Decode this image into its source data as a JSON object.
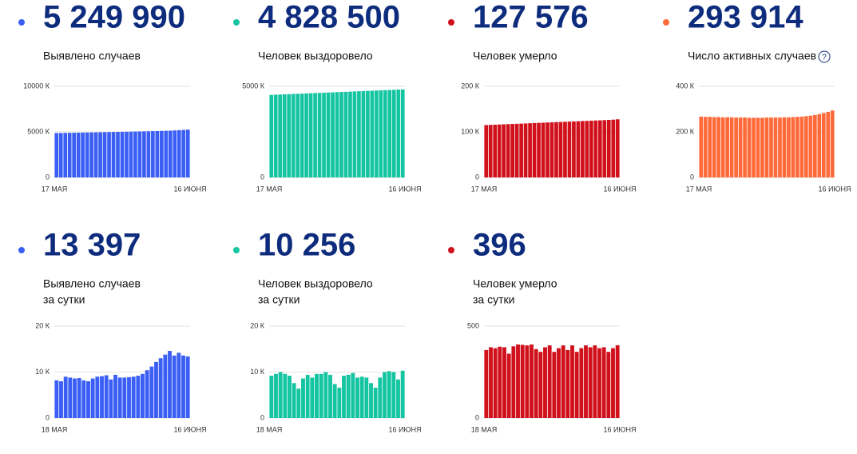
{
  "chart_data": [
    {
      "type": "bar",
      "headline": "5 249 990",
      "subtitle": [
        "Выявлено случаев"
      ],
      "color": "#3b5ff5",
      "categories": [
        "17 МАЯ",
        null,
        null,
        null,
        null,
        null,
        null,
        null,
        null,
        null,
        null,
        null,
        null,
        null,
        null,
        null,
        null,
        null,
        null,
        null,
        null,
        null,
        null,
        null,
        null,
        null,
        null,
        null,
        null,
        null,
        "16 ИЮНЯ"
      ],
      "values": [
        4870,
        4879,
        4888,
        4897,
        4906,
        4915,
        4924,
        4933,
        4942,
        4951,
        4960,
        4970,
        4980,
        4990,
        5000,
        5010,
        5020,
        5030,
        5040,
        5050,
        5060,
        5070,
        5081,
        5093,
        5106,
        5120,
        5135,
        5160,
        5190,
        5220,
        5250
      ],
      "ylim": [
        0,
        10000
      ],
      "yticks": [
        0,
        {
          "value": 5000,
          "label": "5000 К"
        },
        {
          "value": 10000,
          "label": "10000 К"
        }
      ],
      "grid": true
    },
    {
      "type": "bar",
      "headline": "4 828 500",
      "subtitle": [
        "Человек выздоровело"
      ],
      "color": "#15c5a2",
      "categories": [
        "17 МАЯ",
        null,
        null,
        null,
        null,
        null,
        null,
        null,
        null,
        null,
        null,
        null,
        null,
        null,
        null,
        null,
        null,
        null,
        null,
        null,
        null,
        null,
        null,
        null,
        null,
        null,
        null,
        null,
        null,
        null,
        "16 ИЮНЯ"
      ],
      "values": [
        4530,
        4540,
        4550,
        4560,
        4570,
        4580,
        4590,
        4600,
        4610,
        4620,
        4630,
        4640,
        4650,
        4660,
        4670,
        4680,
        4690,
        4700,
        4710,
        4720,
        4730,
        4740,
        4750,
        4760,
        4770,
        4780,
        4790,
        4800,
        4810,
        4820,
        4829
      ],
      "ylim": [
        0,
        5000
      ],
      "yticks": [
        0,
        {
          "value": 5000,
          "label": "5000 К"
        }
      ],
      "grid": true
    },
    {
      "type": "bar",
      "headline": "127 576",
      "subtitle": [
        "Человек умерло"
      ],
      "color": "#d0101b",
      "categories": [
        "17 МАЯ",
        null,
        null,
        null,
        null,
        null,
        null,
        null,
        null,
        null,
        null,
        null,
        null,
        null,
        null,
        null,
        null,
        null,
        null,
        null,
        null,
        null,
        null,
        null,
        null,
        null,
        null,
        null,
        null,
        null,
        "16 ИЮНЯ"
      ],
      "values": [
        115.0,
        115.4,
        115.8,
        116.2,
        116.6,
        117.0,
        117.4,
        117.8,
        118.2,
        118.6,
        119.0,
        119.4,
        119.8,
        120.2,
        120.6,
        121.0,
        121.4,
        121.8,
        122.2,
        122.6,
        123.0,
        123.4,
        123.8,
        124.2,
        124.6,
        125.0,
        125.4,
        125.8,
        126.3,
        126.8,
        127.6
      ],
      "ylim": [
        0,
        200
      ],
      "yticks": [
        0,
        {
          "value": 100,
          "label": "100 К"
        },
        {
          "value": 200,
          "label": "200 К"
        }
      ],
      "grid": true
    },
    {
      "type": "bar",
      "headline": "293 914",
      "subtitle": [
        "Число активных случаев"
      ],
      "help": "?",
      "color": "#ff6a3a",
      "categories": [
        "17 МАЯ",
        null,
        null,
        null,
        null,
        null,
        null,
        null,
        null,
        null,
        null,
        null,
        null,
        null,
        null,
        null,
        null,
        null,
        null,
        null,
        null,
        null,
        null,
        null,
        null,
        null,
        null,
        null,
        null,
        null,
        "16 ИЮНЯ"
      ],
      "values": [
        267,
        266,
        266,
        265,
        265,
        264,
        264,
        264,
        263,
        263,
        263,
        262,
        262,
        262,
        262,
        263,
        263,
        263,
        263,
        264,
        264,
        265,
        266,
        267,
        269,
        271,
        274,
        278,
        283,
        288,
        294
      ],
      "ylim": [
        0,
        400
      ],
      "yticks": [
        0,
        {
          "value": 200,
          "label": "200 К"
        },
        {
          "value": 400,
          "label": "400 К"
        }
      ],
      "grid": true
    },
    {
      "type": "bar",
      "headline": "13 397",
      "subtitle": [
        "Выявлено случаев",
        "за сутки"
      ],
      "color": "#3b5ff5",
      "categories": [
        "18 МАЯ",
        null,
        null,
        null,
        null,
        null,
        null,
        null,
        null,
        null,
        null,
        null,
        null,
        null,
        null,
        null,
        null,
        null,
        null,
        null,
        null,
        null,
        null,
        null,
        null,
        null,
        null,
        null,
        null,
        "16 ИЮНЯ"
      ],
      "values": [
        8.2,
        8.0,
        9.0,
        8.8,
        8.6,
        8.7,
        8.2,
        8.0,
        8.6,
        9.0,
        9.1,
        9.3,
        8.4,
        9.4,
        8.8,
        8.8,
        8.9,
        9.0,
        9.2,
        9.6,
        10.4,
        11.2,
        12.2,
        13.0,
        13.8,
        14.6,
        13.6,
        14.2,
        13.6,
        13.4
      ],
      "ylim": [
        0,
        20
      ],
      "yticks": [
        0,
        {
          "value": 10,
          "label": "10 К"
        },
        {
          "value": 20,
          "label": "20 К"
        }
      ],
      "grid": true
    },
    {
      "type": "bar",
      "headline": "10 256",
      "subtitle": [
        "Человек выздоровело",
        "за сутки"
      ],
      "color": "#15c5a2",
      "categories": [
        "18 МАЯ",
        null,
        null,
        null,
        null,
        null,
        null,
        null,
        null,
        null,
        null,
        null,
        null,
        null,
        null,
        null,
        null,
        null,
        null,
        null,
        null,
        null,
        null,
        null,
        null,
        null,
        null,
        null,
        null,
        "16 ИЮНЯ"
      ],
      "values": [
        9.2,
        9.6,
        10.0,
        9.6,
        9.2,
        7.6,
        6.4,
        8.6,
        9.4,
        8.8,
        9.6,
        9.6,
        10.0,
        9.4,
        7.4,
        6.6,
        9.2,
        9.4,
        9.8,
        8.8,
        9.0,
        8.8,
        7.6,
        6.6,
        8.8,
        10.0,
        10.2,
        10.0,
        8.4,
        10.3
      ],
      "ylim": [
        0,
        20
      ],
      "yticks": [
        0,
        {
          "value": 10,
          "label": "10 К"
        },
        {
          "value": 20,
          "label": "20 К"
        }
      ],
      "grid": true
    },
    {
      "type": "bar",
      "headline": "396",
      "subtitle": [
        "Человек умерло",
        "за сутки"
      ],
      "color": "#d0101b",
      "categories": [
        "18 МАЯ",
        null,
        null,
        null,
        null,
        null,
        null,
        null,
        null,
        null,
        null,
        null,
        null,
        null,
        null,
        null,
        null,
        null,
        null,
        null,
        null,
        null,
        null,
        null,
        null,
        null,
        null,
        null,
        null,
        "16 ИЮНЯ"
      ],
      "values": [
        370,
        385,
        380,
        388,
        385,
        350,
        390,
        400,
        398,
        395,
        400,
        375,
        360,
        385,
        395,
        360,
        380,
        395,
        370,
        395,
        360,
        380,
        395,
        385,
        395,
        380,
        385,
        360,
        380,
        396
      ],
      "ylim": [
        0,
        500
      ],
      "yticks": [
        0,
        500
      ],
      "grid": true
    }
  ]
}
